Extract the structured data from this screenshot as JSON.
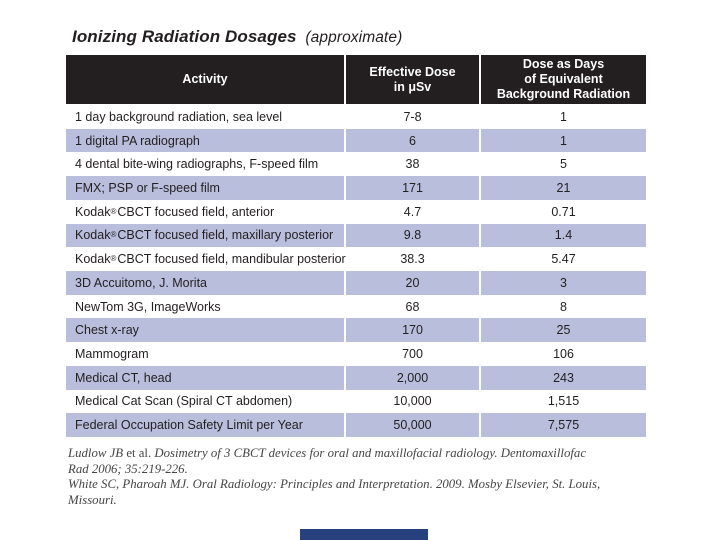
{
  "slide": {
    "title": {
      "main": "Ionizing Radiation Dosages",
      "qualifier": "(approximate)"
    }
  },
  "table": {
    "headers": [
      "Activity",
      "Effective Dose\nin μSv",
      "Dose as Days\nof Equivalent\nBackground Radiation"
    ],
    "rows": [
      {
        "activity": "1 day background radiation, sea level",
        "dose": "7-8",
        "days": "1"
      },
      {
        "activity": "1 digital PA radiograph",
        "dose": "6",
        "days": "1"
      },
      {
        "activity": "4 dental bite-wing radiographs, F-speed film",
        "dose": "38",
        "days": "5"
      },
      {
        "activity": "FMX; PSP or F-speed film",
        "dose": "171",
        "days": "21"
      },
      {
        "activity": "Kodak® CBCT focused field, anterior",
        "dose": "4.7",
        "days": "0.71"
      },
      {
        "activity": "Kodak® CBCT focused field, maxillary posterior",
        "dose": "9.8",
        "days": "1.4"
      },
      {
        "activity": "Kodak® CBCT focused field, mandibular posterior",
        "dose": "38.3",
        "days": "5.47"
      },
      {
        "activity": "3D Accuitomo, J. Morita",
        "dose": "20",
        "days": "3"
      },
      {
        "activity": "NewTom 3G, ImageWorks",
        "dose": "68",
        "days": "8"
      },
      {
        "activity": "Chest x-ray",
        "dose": "170",
        "days": "25"
      },
      {
        "activity": "Mammogram",
        "dose": "700",
        "days": "106"
      },
      {
        "activity": "Medical CT, head",
        "dose": "2,000",
        "days": "243"
      },
      {
        "activity": "Medical Cat Scan (Spiral CT abdomen)",
        "dose": "10,000",
        "days": "1,515"
      },
      {
        "activity": "Federal Occupation Safety Limit per Year",
        "dose": "50,000",
        "days": "7,575"
      }
    ]
  },
  "citations": {
    "l1a": "Ludlow JB ",
    "l1b": "et al.",
    "l1c": " Dosimetry of 3 CBCT devices for oral and maxillofacial radiology. Dentomaxillofac",
    "l2": "Rad 2006; 35:219-226.",
    "l3": "White SC, Pharoah MJ. Oral Radiology: Principles and Interpretation. 2009. Mosby Elsevier, St. Louis,",
    "l4": "Missouri."
  },
  "colors": {
    "header_bg": "#231f20",
    "alt_row_bg": "#b8bedc",
    "bottom_bar": "#26417c"
  }
}
